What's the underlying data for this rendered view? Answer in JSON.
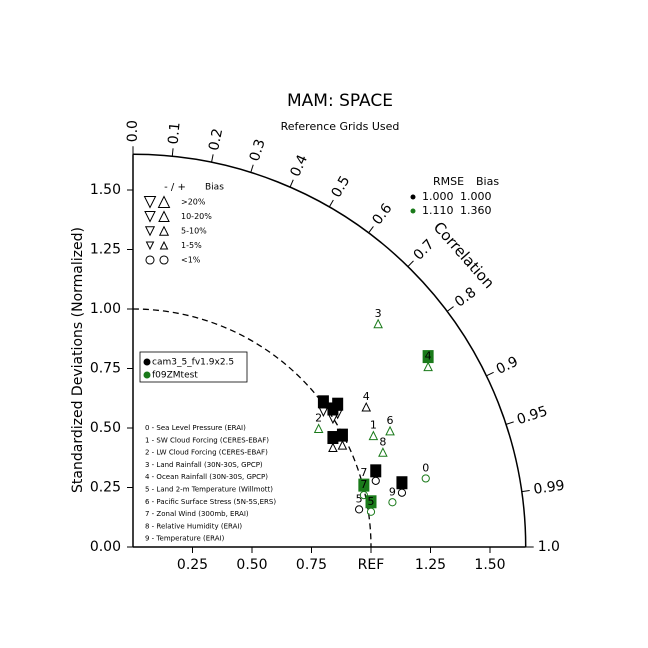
{
  "chart_data": {
    "type": "taylor",
    "title": "MAM: SPACE",
    "subtitle": "Reference Grids Used",
    "ylabel": "Standardized Deviations (Normalized)",
    "correlation_label": "Correlation",
    "rlim": [
      0,
      1.65
    ],
    "xticks": [
      0.25,
      {
        "value": 0.5,
        "label": "0.50"
      },
      0.75,
      {
        "value": 1,
        "label": "REF"
      },
      1.25,
      {
        "value": 1.5,
        "label": "1.50"
      }
    ],
    "yticks": [
      {
        "value": 0,
        "label": "0.00"
      },
      0.25,
      {
        "value": 0.5,
        "label": "0.50"
      },
      0.75,
      {
        "value": 1,
        "label": "1.00"
      },
      1.25,
      {
        "value": 1.5,
        "label": "1.50"
      }
    ],
    "correlation_ticks": [
      {
        "value": 0,
        "label": "0.0"
      },
      0.1,
      0.2,
      0.3,
      0.4,
      0.5,
      0.6,
      0.7,
      0.8,
      0.9,
      0.95,
      0.99,
      {
        "value": 1,
        "label": "1.0"
      }
    ],
    "reference_arc": 1,
    "series": [
      {
        "name": "cam3_5_fv1.9x2.5",
        "color": "#000000",
        "labels": [
          "0",
          "1",
          "2",
          "3",
          "4",
          "5",
          "6",
          "7",
          "8",
          "9"
        ],
        "x": [
          1.02,
          0.8,
          0.86,
          0.84,
          0.98,
          0.95,
          0.84,
          0.97,
          0.88,
          1.13
        ],
        "y": [
          0.32,
          0.61,
          0.6,
          0.58,
          0.63,
          0.2,
          0.46,
          0.31,
          0.47,
          0.27
        ],
        "filled": [
          true,
          true,
          true,
          true,
          false,
          false,
          true,
          false,
          true,
          true
        ],
        "markers": [
          "circle",
          "triangle-down",
          "triangle-down",
          "triangle-down",
          "triangle-up",
          "circle",
          "triangle-up",
          "circle",
          "triangle-up",
          "circle"
        ]
      },
      {
        "name": "f09ZMtest",
        "color": "#1a7a1a",
        "labels": [
          "0",
          "1",
          "2",
          "3",
          "4",
          "5",
          "6",
          "7",
          "8",
          "9"
        ],
        "x": [
          1.23,
          1.01,
          0.78,
          1.03,
          1.24,
          1.0,
          1.08,
          0.97,
          1.05,
          1.09
        ],
        "y": [
          0.33,
          0.51,
          0.54,
          0.98,
          0.8,
          0.19,
          0.53,
          0.26,
          0.44,
          0.23
        ],
        "filled": [
          false,
          false,
          false,
          false,
          true,
          true,
          false,
          true,
          false,
          false
        ],
        "markers": [
          "circle",
          "triangle-up",
          "triangle-up",
          "triangle-up",
          "triangle-up",
          "circle",
          "triangle-up",
          "circle",
          "triangle-up",
          "circle"
        ]
      }
    ],
    "cases": [
      "0 - Sea Level Pressure (ERAI)",
      "1 - SW Cloud Forcing (CERES-EBAF)",
      "2 - LW Cloud Forcing (CERES-EBAF)",
      "3 - Land Rainfall (30N-30S, GPCP)",
      "4 - Ocean Rainfall (30N-30S, GPCP)",
      "5 - Land 2-m Temperature (Willmott)",
      "6 - Pacific Surface Stress (5N-5S,ERS)",
      "7 - Zonal Wind (300mb, ERAI)",
      "8 - Relative Humidity (ERAI)",
      "9 - Temperature (ERAI)"
    ],
    "bias_legend": {
      "header": [
        "- / +",
        "Bias"
      ],
      "rows": [
        ">20%",
        "10-20%",
        "5-10%",
        "1-5%",
        "<1%"
      ]
    },
    "stats": {
      "header": [
        "RMSE",
        "Bias"
      ],
      "rows": [
        {
          "rmse": {
            "value": 1,
            "label": "1.000"
          },
          "bias": {
            "value": 1,
            "label": "1.000"
          }
        },
        {
          "rmse": {
            "value": 1.11,
            "label": "1.110"
          },
          "bias": {
            "value": 1.36,
            "label": "1.360"
          }
        }
      ]
    }
  }
}
